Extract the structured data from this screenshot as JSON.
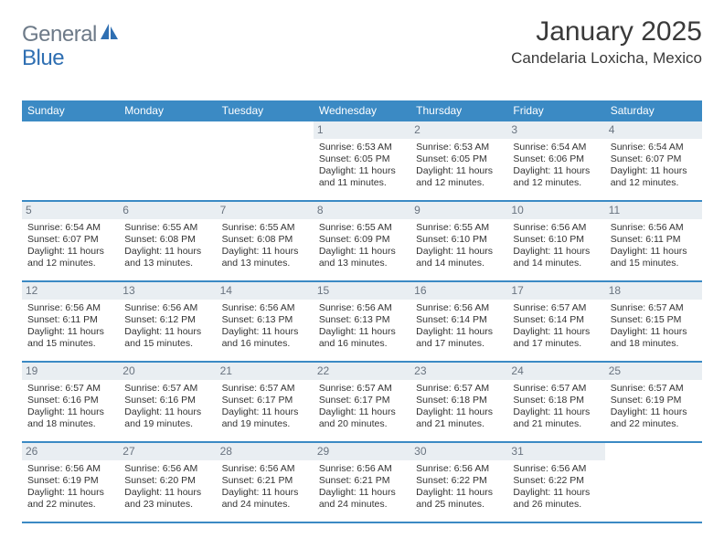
{
  "brand": {
    "part1": "General",
    "part2": "Blue"
  },
  "title": "January 2025",
  "location": "Candelaria Loxicha, Mexico",
  "colors": {
    "header_bg": "#3b8ac4",
    "daynum_bg": "#e9eef2",
    "daynum_fg": "#6a7480",
    "rule": "#3b8ac4",
    "text": "#333333",
    "logo_gray": "#6d7a88",
    "logo_blue": "#2f6fb2"
  },
  "dow": [
    "Sunday",
    "Monday",
    "Tuesday",
    "Wednesday",
    "Thursday",
    "Friday",
    "Saturday"
  ],
  "weeks": [
    [
      {
        "n": "",
        "sr": "",
        "ss": "",
        "dl": ""
      },
      {
        "n": "",
        "sr": "",
        "ss": "",
        "dl": ""
      },
      {
        "n": "",
        "sr": "",
        "ss": "",
        "dl": ""
      },
      {
        "n": "1",
        "sr": "6:53 AM",
        "ss": "6:05 PM",
        "dl": "11 hours and 11 minutes."
      },
      {
        "n": "2",
        "sr": "6:53 AM",
        "ss": "6:05 PM",
        "dl": "11 hours and 12 minutes."
      },
      {
        "n": "3",
        "sr": "6:54 AM",
        "ss": "6:06 PM",
        "dl": "11 hours and 12 minutes."
      },
      {
        "n": "4",
        "sr": "6:54 AM",
        "ss": "6:07 PM",
        "dl": "11 hours and 12 minutes."
      }
    ],
    [
      {
        "n": "5",
        "sr": "6:54 AM",
        "ss": "6:07 PM",
        "dl": "11 hours and 12 minutes."
      },
      {
        "n": "6",
        "sr": "6:55 AM",
        "ss": "6:08 PM",
        "dl": "11 hours and 13 minutes."
      },
      {
        "n": "7",
        "sr": "6:55 AM",
        "ss": "6:08 PM",
        "dl": "11 hours and 13 minutes."
      },
      {
        "n": "8",
        "sr": "6:55 AM",
        "ss": "6:09 PM",
        "dl": "11 hours and 13 minutes."
      },
      {
        "n": "9",
        "sr": "6:55 AM",
        "ss": "6:10 PM",
        "dl": "11 hours and 14 minutes."
      },
      {
        "n": "10",
        "sr": "6:56 AM",
        "ss": "6:10 PM",
        "dl": "11 hours and 14 minutes."
      },
      {
        "n": "11",
        "sr": "6:56 AM",
        "ss": "6:11 PM",
        "dl": "11 hours and 15 minutes."
      }
    ],
    [
      {
        "n": "12",
        "sr": "6:56 AM",
        "ss": "6:11 PM",
        "dl": "11 hours and 15 minutes."
      },
      {
        "n": "13",
        "sr": "6:56 AM",
        "ss": "6:12 PM",
        "dl": "11 hours and 15 minutes."
      },
      {
        "n": "14",
        "sr": "6:56 AM",
        "ss": "6:13 PM",
        "dl": "11 hours and 16 minutes."
      },
      {
        "n": "15",
        "sr": "6:56 AM",
        "ss": "6:13 PM",
        "dl": "11 hours and 16 minutes."
      },
      {
        "n": "16",
        "sr": "6:56 AM",
        "ss": "6:14 PM",
        "dl": "11 hours and 17 minutes."
      },
      {
        "n": "17",
        "sr": "6:57 AM",
        "ss": "6:14 PM",
        "dl": "11 hours and 17 minutes."
      },
      {
        "n": "18",
        "sr": "6:57 AM",
        "ss": "6:15 PM",
        "dl": "11 hours and 18 minutes."
      }
    ],
    [
      {
        "n": "19",
        "sr": "6:57 AM",
        "ss": "6:16 PM",
        "dl": "11 hours and 18 minutes."
      },
      {
        "n": "20",
        "sr": "6:57 AM",
        "ss": "6:16 PM",
        "dl": "11 hours and 19 minutes."
      },
      {
        "n": "21",
        "sr": "6:57 AM",
        "ss": "6:17 PM",
        "dl": "11 hours and 19 minutes."
      },
      {
        "n": "22",
        "sr": "6:57 AM",
        "ss": "6:17 PM",
        "dl": "11 hours and 20 minutes."
      },
      {
        "n": "23",
        "sr": "6:57 AM",
        "ss": "6:18 PM",
        "dl": "11 hours and 21 minutes."
      },
      {
        "n": "24",
        "sr": "6:57 AM",
        "ss": "6:18 PM",
        "dl": "11 hours and 21 minutes."
      },
      {
        "n": "25",
        "sr": "6:57 AM",
        "ss": "6:19 PM",
        "dl": "11 hours and 22 minutes."
      }
    ],
    [
      {
        "n": "26",
        "sr": "6:56 AM",
        "ss": "6:19 PM",
        "dl": "11 hours and 22 minutes."
      },
      {
        "n": "27",
        "sr": "6:56 AM",
        "ss": "6:20 PM",
        "dl": "11 hours and 23 minutes."
      },
      {
        "n": "28",
        "sr": "6:56 AM",
        "ss": "6:21 PM",
        "dl": "11 hours and 24 minutes."
      },
      {
        "n": "29",
        "sr": "6:56 AM",
        "ss": "6:21 PM",
        "dl": "11 hours and 24 minutes."
      },
      {
        "n": "30",
        "sr": "6:56 AM",
        "ss": "6:22 PM",
        "dl": "11 hours and 25 minutes."
      },
      {
        "n": "31",
        "sr": "6:56 AM",
        "ss": "6:22 PM",
        "dl": "11 hours and 26 minutes."
      },
      {
        "n": "",
        "sr": "",
        "ss": "",
        "dl": ""
      }
    ]
  ],
  "labels": {
    "sunrise": "Sunrise: ",
    "sunset": "Sunset: ",
    "daylight": "Daylight: "
  }
}
